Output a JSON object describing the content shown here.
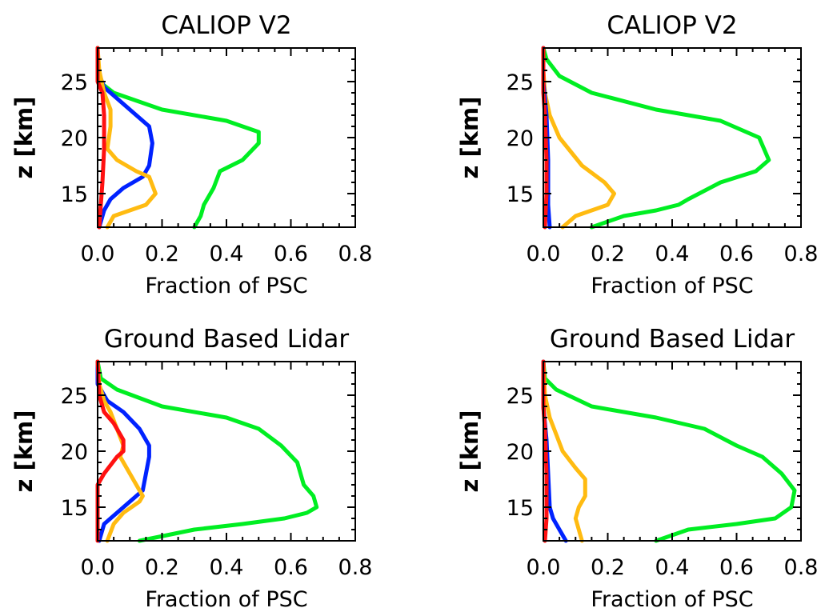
{
  "chart_data": [
    {
      "type": "line",
      "title": "CALIOP V2",
      "xlabel": "Fraction of PSC",
      "ylabel": "z [km]",
      "xlim": [
        0,
        0.8
      ],
      "ylim": [
        12,
        28
      ],
      "xticks": [
        "0.0",
        "0.2",
        "0.4",
        "0.6",
        "0.8"
      ],
      "yticks": [
        "15",
        "20",
        "25"
      ],
      "series": [
        {
          "color": "#00ee22",
          "x": [
            0.0,
            0.0,
            0.005,
            0.05,
            0.2,
            0.4,
            0.5,
            0.5,
            0.45,
            0.38,
            0.36,
            0.35,
            0.33,
            0.32,
            0.3
          ],
          "y": [
            28,
            26,
            25,
            24,
            22.5,
            21.5,
            20.5,
            19.5,
            18,
            17,
            15.5,
            15,
            14,
            13,
            12
          ]
        },
        {
          "color": "#0022ff",
          "x": [
            0.0,
            0.0,
            0.02,
            0.06,
            0.12,
            0.16,
            0.17,
            0.16,
            0.14,
            0.08,
            0.04,
            0.02,
            0.005
          ],
          "y": [
            28,
            26,
            24.5,
            23.5,
            22,
            21,
            19.5,
            17.5,
            16.5,
            15.5,
            14.5,
            13.5,
            12
          ]
        },
        {
          "color": "#ffbb11",
          "x": [
            0.0,
            0.005,
            0.02,
            0.04,
            0.04,
            0.03,
            0.06,
            0.12,
            0.16,
            0.18,
            0.15,
            0.1,
            0.05,
            0.03
          ],
          "y": [
            28,
            26,
            24,
            22.5,
            21,
            19,
            18,
            17,
            16.5,
            15,
            14,
            13.5,
            13,
            12
          ]
        },
        {
          "color": "#ff1111",
          "x": [
            0.0,
            0.0,
            0.015,
            0.02,
            0.02,
            0.015,
            0.01,
            0.005
          ],
          "y": [
            28,
            25,
            24,
            22,
            19,
            16,
            14,
            12
          ]
        }
      ]
    },
    {
      "type": "line",
      "title": "CALIOP V2",
      "xlabel": "Fraction of PSC",
      "ylabel": "z [km]",
      "xlim": [
        0,
        0.8
      ],
      "ylim": [
        12,
        28
      ],
      "xticks": [
        "0.0",
        "0.2",
        "0.4",
        "0.6",
        "0.8"
      ],
      "yticks": [
        "15",
        "20",
        "25"
      ],
      "series": [
        {
          "color": "#00ee22",
          "x": [
            0.0,
            0.01,
            0.05,
            0.15,
            0.35,
            0.55,
            0.67,
            0.7,
            0.66,
            0.55,
            0.45,
            0.42,
            0.35,
            0.25,
            0.2,
            0.15
          ],
          "y": [
            28,
            27,
            25.5,
            24,
            22.5,
            21.5,
            20,
            18,
            17,
            16,
            14.5,
            14,
            13.5,
            13,
            12.5,
            12
          ]
        },
        {
          "color": "#ffbb11",
          "x": [
            0.0,
            0.0,
            0.005,
            0.02,
            0.05,
            0.12,
            0.19,
            0.22,
            0.2,
            0.15,
            0.1,
            0.06
          ],
          "y": [
            28,
            26,
            24,
            22,
            20,
            17.5,
            16,
            15,
            14,
            13.5,
            13,
            12
          ]
        },
        {
          "color": "#0022ff",
          "x": [
            0.0,
            0.0,
            0.01,
            0.015,
            0.015,
            0.02
          ],
          "y": [
            28,
            25,
            22,
            18,
            14,
            12
          ]
        },
        {
          "color": "#ff1111",
          "x": [
            0.0,
            0.0,
            0.005,
            0.01,
            0.01,
            0.005
          ],
          "y": [
            28,
            24,
            22,
            18,
            15,
            12
          ]
        }
      ]
    },
    {
      "type": "line",
      "title": "Ground Based Lidar",
      "xlabel": "Fraction of PSC",
      "ylabel": "z [km]",
      "xlim": [
        0,
        0.8
      ],
      "ylim": [
        12,
        28
      ],
      "xticks": [
        "0.0",
        "0.2",
        "0.4",
        "0.6",
        "0.8"
      ],
      "yticks": [
        "15",
        "20",
        "25"
      ],
      "series": [
        {
          "color": "#00ee22",
          "x": [
            0.0,
            0.01,
            0.06,
            0.2,
            0.4,
            0.5,
            0.57,
            0.62,
            0.64,
            0.67,
            0.68,
            0.65,
            0.58,
            0.45,
            0.3,
            0.13
          ],
          "y": [
            28,
            26.5,
            25.5,
            24,
            23,
            22,
            20.5,
            19,
            17,
            16,
            15,
            14.5,
            14,
            13.5,
            13,
            12
          ]
        },
        {
          "color": "#0022ff",
          "x": [
            0.0,
            0.0,
            0.03,
            0.08,
            0.13,
            0.16,
            0.16,
            0.15,
            0.14,
            0.1,
            0.06,
            0.02,
            0.005
          ],
          "y": [
            28,
            26,
            24.5,
            23.5,
            22,
            20.5,
            19.5,
            18,
            16.5,
            15.5,
            14.5,
            13.5,
            12
          ]
        },
        {
          "color": "#ffbb11",
          "x": [
            0.0,
            0.005,
            0.02,
            0.04,
            0.06,
            0.08,
            0.07,
            0.1,
            0.14,
            0.13,
            0.08,
            0.05,
            0.03
          ],
          "y": [
            28,
            26,
            24.5,
            23.5,
            22,
            20.5,
            19.5,
            18,
            16,
            15.5,
            14.5,
            13.5,
            12
          ]
        },
        {
          "color": "#ff1111",
          "x": [
            0.0,
            0.005,
            0.02,
            0.05,
            0.08,
            0.08,
            0.06,
            0.02,
            0.0,
            0.0,
            0.0
          ],
          "y": [
            28,
            25,
            23.5,
            22.5,
            21,
            20,
            19.5,
            18,
            17,
            15,
            12
          ]
        }
      ]
    },
    {
      "type": "line",
      "title": "Ground Based Lidar",
      "xlabel": "Fraction of PSC",
      "ylabel": "z [km]",
      "xlim": [
        0,
        0.8
      ],
      "ylim": [
        12,
        28
      ],
      "xticks": [
        "0.0",
        "0.2",
        "0.4",
        "0.6",
        "0.8"
      ],
      "yticks": [
        "15",
        "20",
        "25"
      ],
      "series": [
        {
          "color": "#00ee22",
          "x": [
            0.0,
            0.005,
            0.04,
            0.15,
            0.35,
            0.5,
            0.6,
            0.68,
            0.74,
            0.78,
            0.77,
            0.72,
            0.6,
            0.45,
            0.35
          ],
          "y": [
            28,
            26.5,
            25.5,
            24,
            23,
            22,
            20.5,
            19.5,
            18,
            16.5,
            15,
            14,
            13.5,
            13,
            12
          ]
        },
        {
          "color": "#ffbb11",
          "x": [
            0.0,
            0.005,
            0.02,
            0.04,
            0.06,
            0.1,
            0.13,
            0.13,
            0.11,
            0.1,
            0.11,
            0.12
          ],
          "y": [
            28,
            25,
            23,
            21.5,
            20,
            18.5,
            17.5,
            16,
            15,
            14,
            13,
            12
          ]
        },
        {
          "color": "#0022ff",
          "x": [
            0.0,
            0.0,
            0.01,
            0.015,
            0.02,
            0.03,
            0.05,
            0.07
          ],
          "y": [
            28,
            24,
            21,
            18,
            15,
            14,
            13,
            12
          ]
        },
        {
          "color": "#ff1111",
          "x": [
            0.0,
            0.0,
            0.005,
            0.01,
            0.01,
            0.005
          ],
          "y": [
            28,
            24,
            22,
            18,
            14,
            12
          ]
        }
      ]
    }
  ]
}
